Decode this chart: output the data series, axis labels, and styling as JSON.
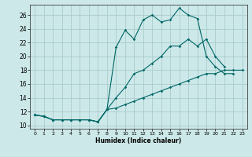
{
  "xlabel": "Humidex (Indice chaleur)",
  "bg_color": "#cce8e8",
  "grid_color": "#aacccc",
  "line_color": "#006666",
  "xlim": [
    -0.5,
    23.5
  ],
  "ylim": [
    9.5,
    27.5
  ],
  "xticks": [
    0,
    1,
    2,
    3,
    4,
    5,
    6,
    7,
    8,
    9,
    10,
    11,
    12,
    13,
    14,
    15,
    16,
    17,
    18,
    19,
    20,
    21,
    22,
    23
  ],
  "yticks": [
    10,
    12,
    14,
    16,
    18,
    20,
    22,
    24,
    26
  ],
  "line1_x": [
    0,
    1,
    2,
    3,
    4,
    5,
    6,
    7,
    8,
    9,
    10,
    11,
    12,
    13,
    14,
    15,
    16,
    17,
    18,
    19,
    20,
    21,
    22,
    23
  ],
  "line1_y": [
    11.5,
    11.3,
    10.8,
    10.8,
    10.8,
    10.8,
    10.8,
    10.5,
    12.3,
    21.3,
    23.8,
    22.5,
    25.3,
    26.0,
    25.0,
    25.3,
    27.0,
    26.0,
    25.5,
    20.0,
    18.5,
    17.5,
    17.5,
    null
  ],
  "line2_x": [
    0,
    1,
    2,
    3,
    4,
    5,
    6,
    7,
    8,
    9,
    10,
    11,
    12,
    13,
    14,
    15,
    16,
    17,
    18,
    19,
    20,
    21,
    22,
    23
  ],
  "line2_y": [
    11.5,
    11.3,
    10.8,
    10.8,
    10.8,
    10.8,
    10.8,
    10.5,
    12.3,
    14.0,
    15.5,
    17.5,
    18.0,
    19.0,
    20.0,
    21.5,
    21.5,
    22.5,
    21.5,
    22.5,
    20.0,
    18.5,
    null,
    null
  ],
  "line3_x": [
    0,
    1,
    2,
    3,
    4,
    5,
    6,
    7,
    8,
    9,
    10,
    11,
    12,
    13,
    14,
    15,
    16,
    17,
    18,
    19,
    20,
    21,
    22,
    23
  ],
  "line3_y": [
    11.5,
    11.3,
    10.8,
    10.8,
    10.8,
    10.8,
    10.8,
    10.5,
    12.3,
    12.5,
    13.0,
    13.5,
    14.0,
    14.5,
    15.0,
    15.5,
    16.0,
    16.5,
    17.0,
    17.5,
    17.5,
    18.0,
    18.0,
    18.0
  ]
}
